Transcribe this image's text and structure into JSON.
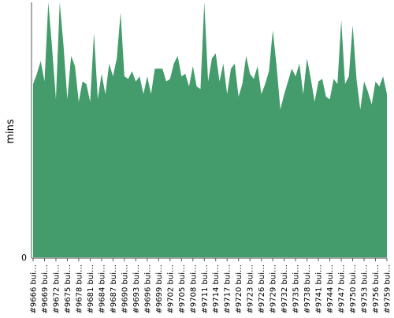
{
  "chart_data": {
    "type": "area",
    "title": "",
    "xlabel": "",
    "ylabel": "mins",
    "ylim": [
      0,
      100
    ],
    "grid": false,
    "legend": "none",
    "colors": {
      "area": "#449b6b",
      "axis": "#555555"
    },
    "x": [
      "#9666 bui…",
      "#9667 bui…",
      "#9668 bui…",
      "#9669 bui…",
      "#9670 bui…",
      "#9671 bui…",
      "#9672 bui…",
      "#9673 bui…",
      "#9674 bui…",
      "#9675 bui…",
      "#9676 bui…",
      "#9677 bui…",
      "#9678 bui…",
      "#9679 bui…",
      "#9680 bui…",
      "#9681 bui…",
      "#9682 bui…",
      "#9683 bui…",
      "#9684 bui…",
      "#9685 bui…",
      "#9686 bui…",
      "#9687 bui…",
      "#9688 bui…",
      "#9689 bui…",
      "#9690 bui…",
      "#9691 bui…",
      "#9692 bui…",
      "#9693 bui…",
      "#9694 bui…",
      "#9695 bui…",
      "#9696 bui…",
      "#9697 bui…",
      "#9698 bui…",
      "#9699 bui…",
      "#9700 bui…",
      "#9701 bui…",
      "#9702 bui…",
      "#9703 bui…",
      "#9704 bui…",
      "#9705 bui…",
      "#9706 bui…",
      "#9707 bui…",
      "#9708 bui…",
      "#9709 bui…",
      "#9710 bui…",
      "#9711 bui…",
      "#9712 bui…",
      "#9713 bui…",
      "#9714 bui…",
      "#9715 bui…",
      "#9716 bui…",
      "#9717 bui…",
      "#9718 bui…",
      "#9719 bui…",
      "#9720 bui…",
      "#9721 bui…",
      "#9722 bui…",
      "#9723 bui…",
      "#9724 bui…",
      "#9725 bui…",
      "#9726 bui…",
      "#9727 bui…",
      "#9728 bui…",
      "#9729 bui…",
      "#9730 bui…",
      "#9731 bui…",
      "#9732 bui…",
      "#9733 bui…",
      "#9734 bui…",
      "#9735 bui…",
      "#9736 bui…",
      "#9737 bui…",
      "#9738 bui…",
      "#9739 bui…",
      "#9740 bui…",
      "#9741 bui…",
      "#9742 bui…",
      "#9743 bui…",
      "#9744 bui…",
      "#9745 bui…",
      "#9746 bui…",
      "#9747 bui…",
      "#9748 bui…",
      "#9749 bui…",
      "#9750 bui…",
      "#9751 bui…",
      "#9752 bui…",
      "#9753 bui…",
      "#9754 bui…",
      "#9755 bui…",
      "#9756 bui…",
      "#9757 bui…",
      "#9758 bui…",
      "#9759 bui…"
    ],
    "tick_every": 3,
    "ytick_labels": [
      {
        "value": 0,
        "label": "0"
      }
    ],
    "series": [
      {
        "name": "",
        "values": [
          68,
          72,
          77,
          69,
          100,
          82,
          62,
          100,
          83,
          62,
          79,
          75,
          61,
          69,
          68,
          61,
          88,
          62,
          72,
          64,
          76,
          71,
          78,
          96,
          71,
          70,
          73,
          69,
          71,
          64,
          71,
          64,
          74,
          74,
          74,
          69,
          70,
          76,
          79,
          71,
          72,
          67,
          75,
          67,
          66,
          100,
          69,
          78,
          80,
          69,
          76,
          64,
          74,
          76,
          63,
          68,
          79,
          72,
          70,
          75,
          64,
          68,
          73,
          89,
          75,
          58,
          64,
          69,
          74,
          71,
          76,
          64,
          78,
          70,
          61,
          69,
          70,
          63,
          62,
          70,
          68,
          93,
          68,
          71,
          91,
          70,
          58,
          69,
          65,
          60,
          69,
          67,
          71,
          64
        ]
      }
    ]
  }
}
